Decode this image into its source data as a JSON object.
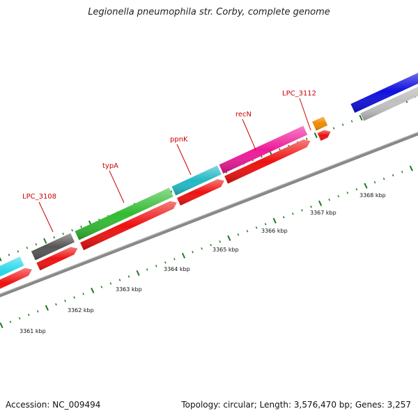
{
  "title": "Legionella pneumophila str. Corby, complete genome",
  "footer": {
    "accession": "Accession: NC_009494",
    "summary": "Topology: circular; Length: 3,576,470 bp; Genes: 3,257"
  },
  "gene_labels": [
    "LPC_3108",
    "typA",
    "ppnK",
    "recN",
    "LPC_3112"
  ],
  "kbp_labels": [
    "3361 kbp",
    "3362 kbp",
    "3363 kbp",
    "3364 kbp",
    "3365 kbp",
    "3366 kbp",
    "3367 kbp",
    "3368 kbp"
  ],
  "colors": {
    "backbone": "#888888",
    "cds": "#ee1111",
    "tick": "#1a7a1a",
    "label_line": "#cc0000",
    "cyan": "#22d6e8",
    "gray": "#555555",
    "green": "#33bb33",
    "teal": "#22b8c4",
    "magenta": "#ee1a99",
    "orange": "#f08a00",
    "blue": "#1010dd",
    "light_gray": "#c0c0c0"
  }
}
